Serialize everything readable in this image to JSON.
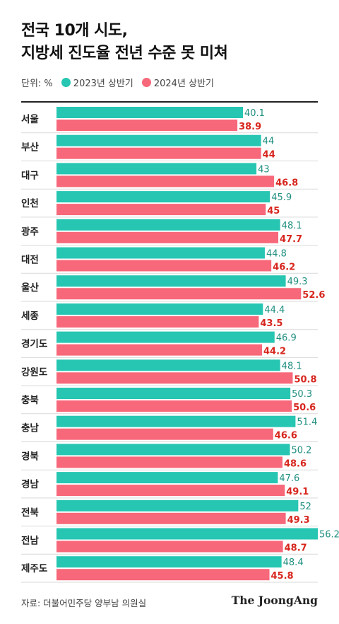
{
  "title": {
    "line1": "전국 10개 시도,",
    "line2": "지방세 진도율 전년 수준 못 미쳐"
  },
  "legend": {
    "unit": "단위: %",
    "series1": "2023년 상반기",
    "series2": "2024년 상반기"
  },
  "colors": {
    "series1": "#26c6b2",
    "series2": "#f7687a",
    "label1": "#1f8f80",
    "label2": "#d7261e",
    "separator": "#d9d9d9"
  },
  "chart_data": {
    "type": "bar",
    "orientation": "horizontal",
    "categories": [
      "서울",
      "부산",
      "대구",
      "인천",
      "광주",
      "대전",
      "울산",
      "세종",
      "경기도",
      "강원도",
      "충북",
      "충남",
      "경북",
      "경남",
      "전북",
      "전남",
      "제주도"
    ],
    "series": [
      {
        "name": "2023년 상반기",
        "values": [
          40.1,
          44,
          43,
          45.9,
          48.1,
          44.8,
          49.3,
          44.4,
          46.9,
          48.1,
          50.3,
          51.4,
          50.2,
          47.6,
          52,
          56.2,
          48.4
        ]
      },
      {
        "name": "2024년 상반기",
        "values": [
          38.9,
          44,
          46.8,
          45,
          47.7,
          46.2,
          52.6,
          43.5,
          44.2,
          50.8,
          50.6,
          46.6,
          48.6,
          49.1,
          49.3,
          48.7,
          45.8
        ]
      }
    ],
    "value_labels": {
      "series1": [
        "40.1",
        "44",
        "43",
        "45.9",
        "48.1",
        "44.8",
        "49.3",
        "44.4",
        "46.9",
        "48.1",
        "50.3",
        "51.4",
        "50.2",
        "47.6",
        "52",
        "56.2",
        "48.4"
      ],
      "series2": [
        "38.9",
        "44",
        "46.8",
        "45",
        "47.7",
        "46.2",
        "52.6",
        "43.5",
        "44.2",
        "50.8",
        "50.6",
        "46.6",
        "48.6",
        "49.1",
        "49.3",
        "48.7",
        "45.8"
      ]
    },
    "xlim": [
      0,
      56.2
    ],
    "grid": false,
    "legend_position": "top-left"
  },
  "footer": {
    "source": "자료: 더불어민주당 양부남 의원실",
    "brand": "The JoongAng"
  }
}
